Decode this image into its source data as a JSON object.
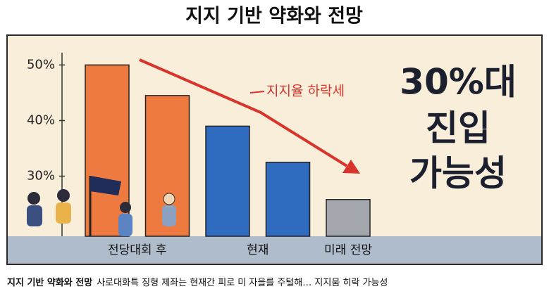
{
  "chart_data": {
    "type": "bar",
    "title": "지지 기반 약화와 전망",
    "categories": [
      "전당대회 후",
      null,
      "현재",
      null,
      "미래 전망"
    ],
    "values": [
      50,
      44.5,
      39,
      32.5,
      25.8
    ],
    "colors": [
      "#ee7a3f",
      "#ee7a3f",
      "#2f6cc0",
      "#2f6cc0",
      "#a3a7ad"
    ],
    "ylim": [
      19.2,
      52.2
    ],
    "yticks": [
      {
        "value": 30,
        "label": "30%"
      },
      {
        "value": 40,
        "label": "40%"
      },
      {
        "value": 50,
        "label": "50%"
      }
    ],
    "annotation": "지지율 하락세",
    "headline": [
      "30%대",
      "진입",
      "가능성"
    ],
    "caption": {
      "bold": "지지 기반 약화와 전망",
      "text": "사로대화특 징형 제좌는 현재간 피로 미 자을를 주털해… 지지뭄 히락 가능성"
    }
  }
}
